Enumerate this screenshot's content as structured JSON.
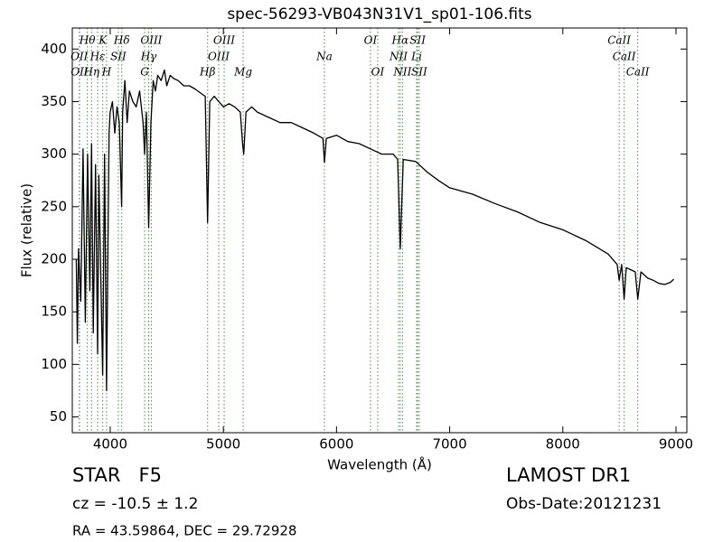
{
  "chart_data": {
    "type": "line",
    "title": "spec-56293-VB043N31V1_sp01-106.fits",
    "x_label": "Wavelength (Å)",
    "y_label": "Flux (relative)",
    "xlim": [
      3665,
      9096
    ],
    "ylim": [
      35,
      420
    ],
    "xticks": [
      4000,
      5000,
      6000,
      7000,
      8000,
      9000
    ],
    "yticks": [
      50,
      100,
      150,
      200,
      250,
      300,
      350,
      400
    ],
    "color": "#000000",
    "annotation_color": "#2ca02c",
    "annotations": [
      [
        {
          "label": "Hθ",
          "x": 3798
        },
        {
          "label": "K",
          "x": 3934
        },
        {
          "label": "Hδ",
          "x": 4102
        },
        {
          "label": "OIII",
          "x": 4363
        },
        {
          "label": "OIII",
          "x": 5007
        },
        {
          "label": "OI",
          "x": 6300
        },
        {
          "label": "Hα",
          "x": 6563
        },
        {
          "label": "SII",
          "x": 6717
        },
        {
          "label": "CaII",
          "x": 8498
        }
      ],
      [
        {
          "label": "OII",
          "x": 3727
        },
        {
          "label": "Hε",
          "x": 3889
        },
        {
          "label": "SII",
          "x": 4072
        },
        {
          "label": "Hγ",
          "x": 4340
        },
        {
          "label": "OIII",
          "x": 4959
        },
        {
          "label": "Na",
          "x": 5893
        },
        {
          "label": "NII",
          "x": 6548
        },
        {
          "label": "Li",
          "x": 6708
        },
        {
          "label": "CaII",
          "x": 8542
        }
      ],
      [
        {
          "label": "OII",
          "x": 3729
        },
        {
          "label": "Hη",
          "x": 3835
        },
        {
          "label": "H",
          "x": 3968
        },
        {
          "label": "G",
          "x": 4304
        },
        {
          "label": "Hβ",
          "x": 4861
        },
        {
          "label": "Mg",
          "x": 5175
        },
        {
          "label": "OI",
          "x": 6364
        },
        {
          "label": "NII",
          "x": 6583
        },
        {
          "label": "SII",
          "x": 6731
        },
        {
          "label": "CaII",
          "x": 8662
        }
      ]
    ],
    "x": [
      3700,
      3710,
      3720,
      3740,
      3760,
      3780,
      3800,
      3820,
      3835,
      3850,
      3870,
      3889,
      3900,
      3933,
      3950,
      3968,
      3990,
      4000,
      4020,
      4040,
      4060,
      4080,
      4101,
      4110,
      4130,
      4150,
      4170,
      4200,
      4230,
      4260,
      4290,
      4304,
      4320,
      4340,
      4360,
      4380,
      4400,
      4420,
      4450,
      4480,
      4500,
      4530,
      4560,
      4600,
      4650,
      4700,
      4750,
      4800,
      4840,
      4861,
      4880,
      4920,
      4960,
      5000,
      5050,
      5100,
      5150,
      5170,
      5180,
      5200,
      5250,
      5300,
      5400,
      5500,
      5600,
      5700,
      5800,
      5880,
      5893,
      5910,
      6000,
      6100,
      6200,
      6300,
      6400,
      6500,
      6540,
      6563,
      6590,
      6700,
      6800,
      6900,
      7000,
      7200,
      7400,
      7600,
      7800,
      8000,
      8200,
      8400,
      8480,
      8498,
      8520,
      8542,
      8560,
      8600,
      8640,
      8662,
      8690,
      8750,
      8800,
      8850,
      8900,
      8950,
      8980
    ],
    "values": [
      200,
      120,
      210,
      160,
      305,
      140,
      300,
      170,
      310,
      130,
      290,
      110,
      280,
      90,
      300,
      75,
      320,
      340,
      350,
      320,
      345,
      330,
      250,
      340,
      370,
      330,
      360,
      350,
      345,
      360,
      330,
      300,
      340,
      230,
      330,
      370,
      360,
      375,
      370,
      380,
      365,
      375,
      372,
      370,
      365,
      365,
      362,
      358,
      355,
      235,
      350,
      355,
      350,
      345,
      348,
      345,
      340,
      310,
      300,
      340,
      345,
      340,
      335,
      330,
      330,
      325,
      320,
      315,
      292,
      315,
      318,
      312,
      310,
      305,
      300,
      300,
      295,
      210,
      295,
      293,
      283,
      275,
      268,
      262,
      253,
      245,
      235,
      228,
      218,
      205,
      195,
      180,
      195,
      162,
      192,
      190,
      188,
      162,
      188,
      182,
      180,
      177,
      176,
      178,
      181
    ]
  },
  "info": {
    "object_class": "STAR   F5",
    "redshift": "cz = -10.5 ± 1.2",
    "coordinates": "RA = 43.59864, DEC = 29.72928",
    "release": "LAMOST DR1",
    "obs_date": "Obs-Date:20121231"
  }
}
